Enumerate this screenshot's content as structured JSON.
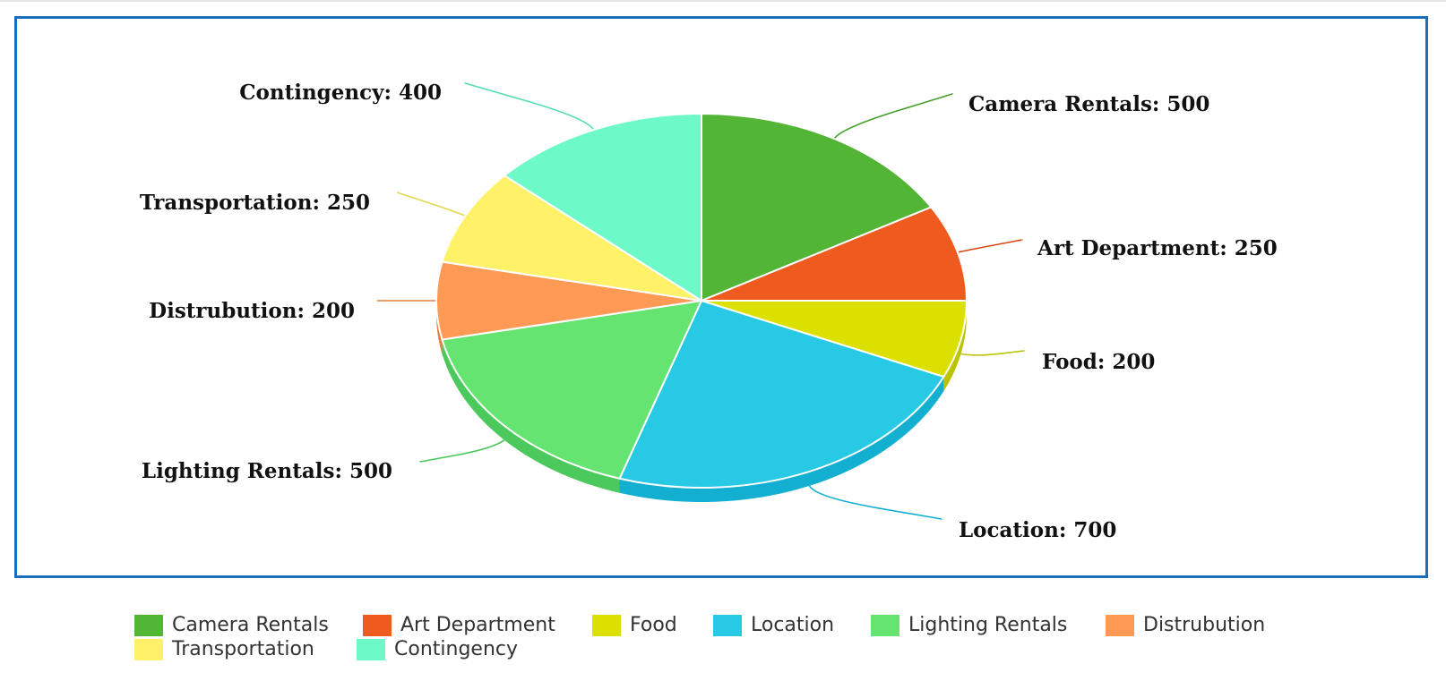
{
  "chart_data": {
    "type": "pie",
    "title": "",
    "style": "3d",
    "slices": [
      {
        "label": "Camera Rentals",
        "value": 500,
        "color": "#52b535",
        "side_color": "#43a02a"
      },
      {
        "label": "Art Department",
        "value": 250,
        "color": "#ef5a1e",
        "side_color": "#d44a12"
      },
      {
        "label": "Food",
        "value": 200,
        "color": "#dbe000",
        "side_color": "#bcc300"
      },
      {
        "label": "Location",
        "value": 700,
        "color": "#27c9e4",
        "side_color": "#12afd0"
      },
      {
        "label": "Lighting Rentals",
        "value": 500,
        "color": "#66e472",
        "side_color": "#4cc95c"
      },
      {
        "label": "Distrubution",
        "value": 200,
        "color": "#ff9a56",
        "side_color": "#e4803c"
      },
      {
        "label": "Transportation",
        "value": 250,
        "color": "#fff268",
        "side_color": "#e5d84c"
      },
      {
        "label": "Contingency",
        "value": 400,
        "color": "#6dfac8",
        "side_color": "#52deab"
      }
    ],
    "data_labels": [
      "Camera Rentals: 500",
      "Art Department: 250",
      "Food: 200",
      "Location: 700",
      "Lighting Rentals: 500",
      "Distrubution: 200",
      "Transportation: 250",
      "Contingency: 400"
    ],
    "legend": {
      "placement": "bottom",
      "entries": [
        "Camera Rentals",
        "Art Department",
        "Food",
        "Location",
        "Lighting Rentals",
        "Distrubution",
        "Transportation",
        "Contingency"
      ]
    },
    "frame_color": "#1a6fba"
  }
}
